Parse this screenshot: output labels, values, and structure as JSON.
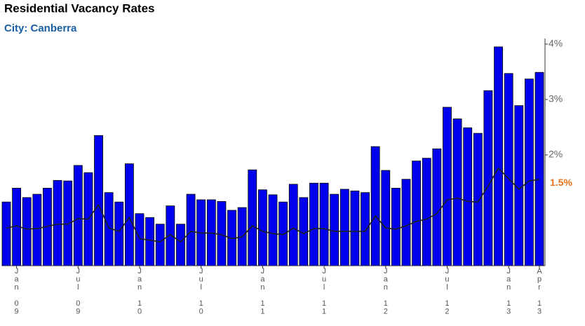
{
  "chart_data": {
    "type": "bar",
    "title": "Residential Vacancy Rates",
    "subtitle": "City: Canberra",
    "categories": [
      null,
      "Jan 09",
      null,
      null,
      null,
      null,
      null,
      "Jul 09",
      null,
      null,
      null,
      null,
      null,
      "Jan 10",
      null,
      null,
      null,
      null,
      null,
      "Jul 10",
      null,
      null,
      null,
      null,
      null,
      "Jan 11",
      null,
      null,
      null,
      null,
      null,
      "Jul 11",
      null,
      null,
      null,
      null,
      null,
      "Jan 12",
      null,
      null,
      null,
      null,
      null,
      "Jul 12",
      null,
      null,
      null,
      null,
      null,
      "Jan 13",
      null,
      null,
      "Apr 13"
    ],
    "series": [
      {
        "color": "#0000ee",
        "values": [
          1.15,
          1.4,
          1.23,
          1.29,
          1.4,
          1.54,
          1.53,
          1.81,
          1.68,
          2.35,
          1.32,
          1.15,
          1.84,
          0.94,
          0.87,
          0.75,
          1.08,
          0.75,
          1.29,
          1.19,
          1.19,
          1.16,
          1.0,
          1.05,
          1.73,
          1.37,
          1.28,
          1.15,
          1.47,
          1.23,
          1.49,
          1.49,
          1.29,
          1.38,
          1.35,
          1.32,
          2.15,
          1.72,
          1.4,
          1.56,
          1.89,
          1.94,
          2.11,
          2.86,
          2.65,
          2.49,
          2.39,
          3.16,
          3.95,
          3.47,
          2.89,
          3.37,
          3.49
        ]
      },
      {
        "color": "#222222",
        "values": [
          0.68,
          0.72,
          0.66,
          0.67,
          0.71,
          0.75,
          0.75,
          0.85,
          0.84,
          1.1,
          0.68,
          0.62,
          0.87,
          0.49,
          0.46,
          0.43,
          0.56,
          0.43,
          0.62,
          0.59,
          0.59,
          0.56,
          0.49,
          0.52,
          0.72,
          0.62,
          0.58,
          0.56,
          0.68,
          0.58,
          0.67,
          0.67,
          0.62,
          0.62,
          0.62,
          0.62,
          0.9,
          0.68,
          0.66,
          0.72,
          0.8,
          0.84,
          0.94,
          1.19,
          1.22,
          1.16,
          1.15,
          1.44,
          1.76,
          1.57,
          1.38,
          1.53,
          1.56
        ]
      }
    ],
    "ylim": [
      0,
      4.1
    ],
    "yticks": [
      {
        "value": 2,
        "label": "2%"
      },
      {
        "value": 3,
        "label": "3%"
      },
      {
        "value": 4,
        "label": "4%"
      }
    ],
    "annotation": {
      "value": 1.5,
      "label": "1.5%",
      "color": "#e8731e"
    }
  }
}
